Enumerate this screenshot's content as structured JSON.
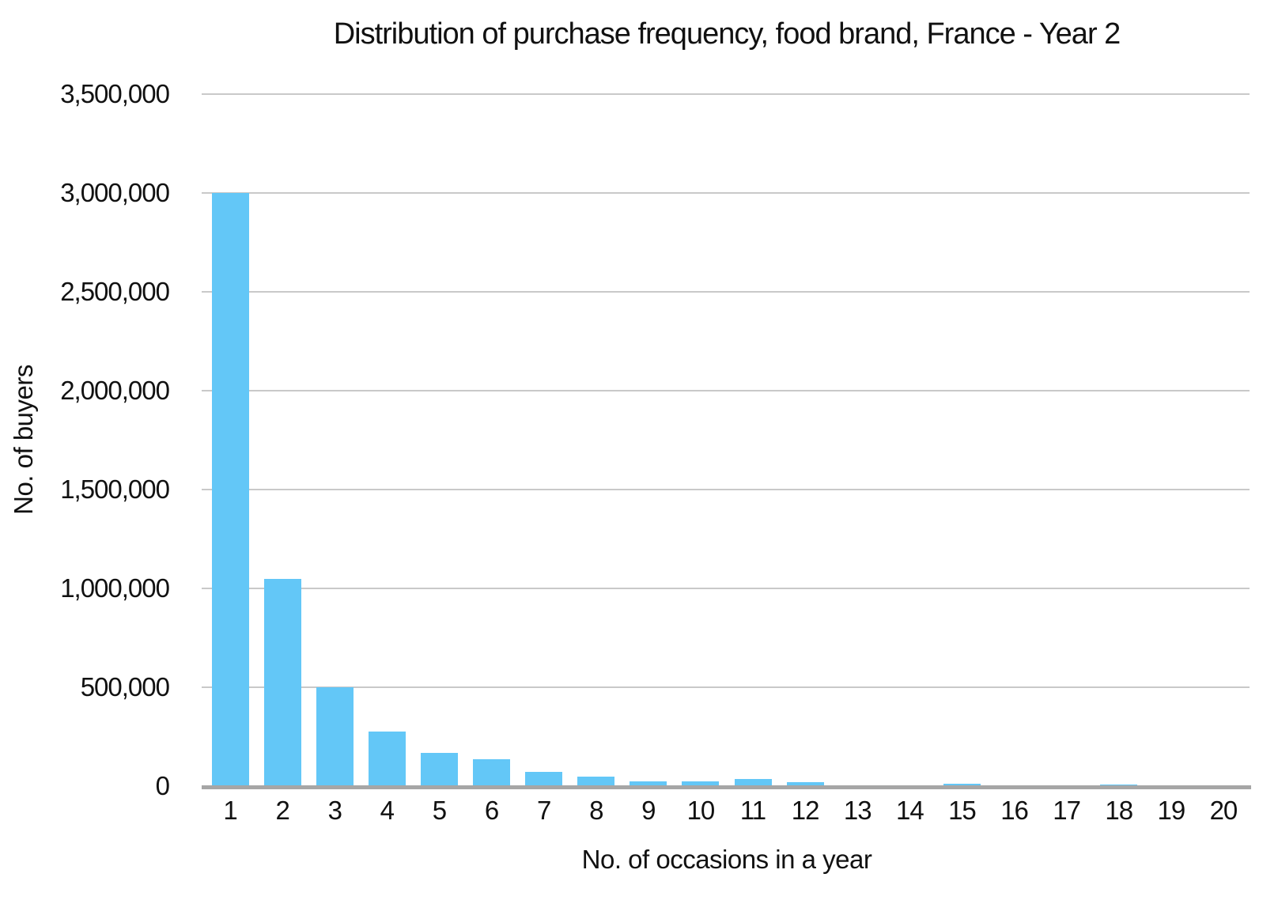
{
  "chart_data": {
    "type": "bar",
    "title": "Distribution of purchase frequency, food brand, France - Year 2",
    "xlabel": "No. of occasions in a year",
    "ylabel": "No. of buyers",
    "categories": [
      "1",
      "2",
      "3",
      "4",
      "5",
      "6",
      "7",
      "8",
      "9",
      "10",
      "11",
      "12",
      "13",
      "14",
      "15",
      "16",
      "17",
      "18",
      "19",
      "20"
    ],
    "values": [
      3000000,
      1050000,
      500000,
      275000,
      170000,
      136000,
      73000,
      49000,
      26000,
      24000,
      38000,
      21000,
      0,
      0,
      13000,
      6000,
      0,
      9000,
      0,
      0
    ],
    "series_name": "No. of buyers",
    "ylim": [
      0,
      3500000
    ],
    "ytick_interval": 500000,
    "ytick_values": [
      0,
      500000,
      1000000,
      1500000,
      2000000,
      2500000,
      3000000,
      3500000
    ],
    "ytick_labels": [
      "0",
      "500,000",
      "1,000,000",
      "1,500,000",
      "2,000,000",
      "2,500,000",
      "3,000,000",
      "3,500,000"
    ],
    "grid": "horizontal-gridlines-on",
    "legend": "none",
    "colors": {
      "bar": "#63c7f7",
      "gridline": "#c9c9c9",
      "axis_line": "#a6a6a6",
      "text": "#111111",
      "background": "#ffffff"
    }
  }
}
